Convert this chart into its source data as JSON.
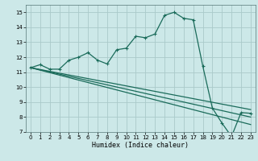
{
  "xlabel": "Humidex (Indice chaleur)",
  "background_color": "#cce8e8",
  "grid_color": "#aacaca",
  "line_color": "#1a6b5a",
  "xlim": [
    -0.5,
    23.5
  ],
  "ylim": [
    7,
    15.5
  ],
  "xticks": [
    0,
    1,
    2,
    3,
    4,
    5,
    6,
    7,
    8,
    9,
    10,
    11,
    12,
    13,
    14,
    15,
    16,
    17,
    18,
    19,
    20,
    21,
    22,
    23
  ],
  "yticks": [
    7,
    8,
    9,
    10,
    11,
    12,
    13,
    14,
    15
  ],
  "line1_x": [
    0,
    1,
    2,
    3,
    4,
    5,
    6,
    7,
    8,
    9,
    10,
    11,
    12,
    13,
    14,
    15,
    16,
    17,
    18,
    19,
    20,
    21,
    22,
    23
  ],
  "line1_y": [
    11.3,
    11.5,
    11.2,
    11.2,
    11.8,
    12.0,
    12.3,
    11.8,
    11.55,
    12.5,
    12.6,
    13.4,
    13.3,
    13.55,
    14.8,
    15.0,
    14.6,
    14.5,
    11.4,
    8.6,
    7.6,
    6.7,
    8.3,
    8.25
  ],
  "line2_x": [
    0,
    23
  ],
  "line2_y": [
    11.3,
    8.5
  ],
  "line3_x": [
    0,
    23
  ],
  "line3_y": [
    11.3,
    8.0
  ],
  "line4_x": [
    0,
    23
  ],
  "line4_y": [
    11.3,
    7.5
  ]
}
